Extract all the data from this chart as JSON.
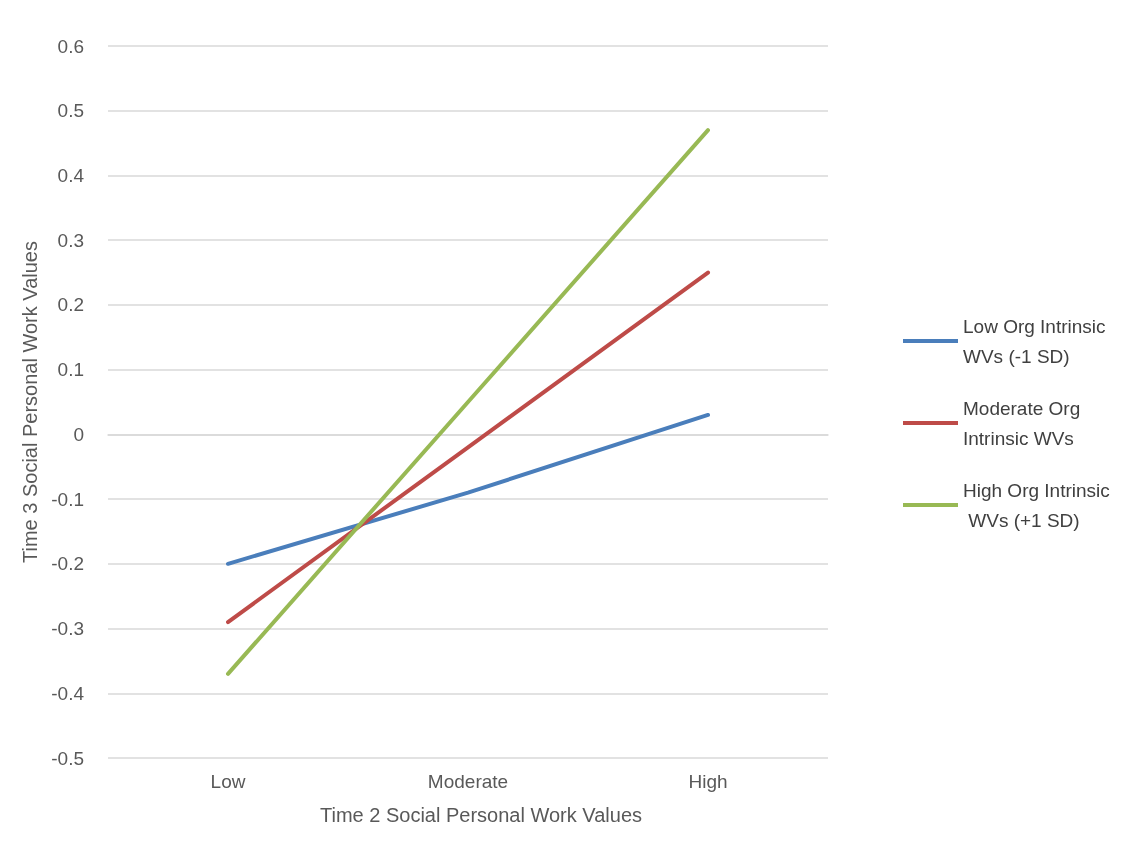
{
  "chart_data": {
    "type": "line",
    "xlabel": "Time 2 Social Personal Work Values",
    "ylabel": "Time 3 Social Personal Work Values",
    "categories": [
      "Low",
      "Moderate",
      "High"
    ],
    "series": [
      {
        "name": "Low Org Intrinsic WVs (-1 SD)",
        "color": "#4a7ebb",
        "values": [
          -0.2,
          -0.09,
          0.03
        ]
      },
      {
        "name": "Moderate Org Intrinsic WVs",
        "color": "#be4b48",
        "values": [
          -0.29,
          -0.02,
          0.25
        ]
      },
      {
        "name": "High Org Intrinsic WVs (+1 SD)",
        "color": "#98b954",
        "values": [
          -0.37,
          0.05,
          0.47
        ]
      }
    ],
    "ylim": [
      -0.5,
      0.6
    ],
    "yticks": [
      -0.5,
      -0.4,
      -0.3,
      -0.2,
      -0.1,
      0,
      0.1,
      0.2,
      0.3,
      0.4,
      0.5,
      0.6
    ],
    "grid": "y",
    "legend": "right",
    "marker": "none",
    "line_style": "solid"
  }
}
